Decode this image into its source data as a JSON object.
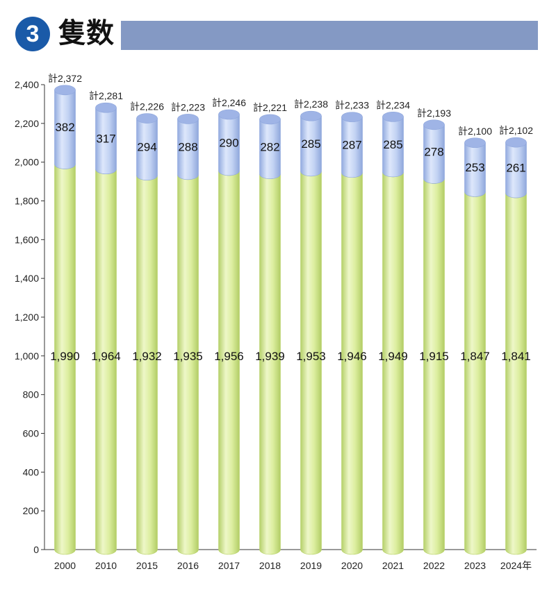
{
  "header": {
    "badge": "3",
    "title": "隻数"
  },
  "colors": {
    "badge": "#1a5aa8",
    "title_bar": "#8499c4",
    "lower": "#d6ea9c",
    "lower_edge": "#b9d36a",
    "upper": "#b8cbef",
    "upper_edge": "#8ea6dc",
    "top_cap": "#9fb4e6"
  },
  "chart_data": {
    "type": "bar",
    "stacked": true,
    "categories": [
      "2000",
      "2010",
      "2015",
      "2016",
      "2017",
      "2018",
      "2019",
      "2020",
      "2021",
      "2022",
      "2023",
      "2024年"
    ],
    "series": [
      {
        "values": [
          1990,
          1964,
          1932,
          1935,
          1956,
          1939,
          1953,
          1946,
          1949,
          1915,
          1847,
          1841
        ]
      },
      {
        "values": [
          382,
          317,
          294,
          288,
          290,
          282,
          285,
          287,
          285,
          278,
          253,
          261
        ]
      }
    ],
    "lower_labels": [
      "1,990",
      "1,964",
      "1,932",
      "1,935",
      "1,956",
      "1,939",
      "1,953",
      "1,946",
      "1,949",
      "1,915",
      "1,847",
      "1,841"
    ],
    "upper_labels": [
      "382",
      "317",
      "294",
      "288",
      "290",
      "282",
      "285",
      "287",
      "285",
      "278",
      "253",
      "261"
    ],
    "totals": [
      "計2,372",
      "計2,281",
      "計2,226",
      "計2,223",
      "計2,246",
      "計2,221",
      "計2,238",
      "計2,233",
      "計2,234",
      "計2,193",
      "計2,100",
      "計2,102"
    ],
    "yticks": [
      "0",
      "200",
      "400",
      "600",
      "800",
      "1,000",
      "1,200",
      "1,400",
      "1,600",
      "1,800",
      "2,000",
      "2,200",
      "2,400"
    ],
    "ylim": [
      0,
      2400
    ],
    "grid": false,
    "legend": "none"
  }
}
